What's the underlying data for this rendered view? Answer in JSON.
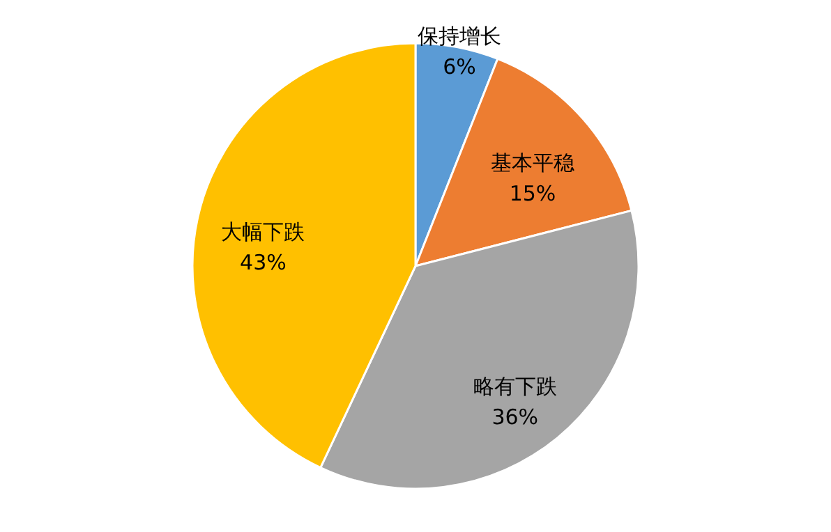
{
  "chart_data": {
    "type": "pie",
    "categories": [
      "保持增长",
      "基本平稳",
      "略有下跌",
      "大幅下跌"
    ],
    "values": [
      6,
      15,
      36,
      43
    ],
    "value_labels": [
      "6%",
      "15%",
      "36%",
      "43%"
    ],
    "colors": [
      "#5b9bd5",
      "#ed7d31",
      "#a5a5a5",
      "#ffc000"
    ]
  }
}
